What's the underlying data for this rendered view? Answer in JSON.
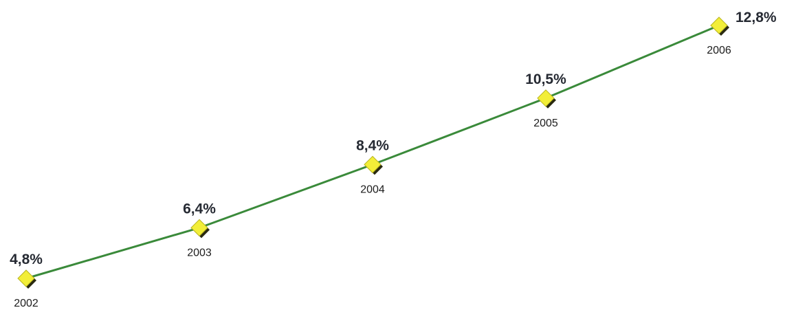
{
  "chart_data": {
    "type": "line",
    "categories": [
      "2002",
      "2003",
      "2004",
      "2005",
      "2006"
    ],
    "series": [
      {
        "values": [
          4.8,
          6.4,
          8.4,
          10.5,
          12.8
        ],
        "value_labels": [
          "4,8%",
          "6,4%",
          "8,4%",
          "10,5%",
          "12,8%"
        ]
      }
    ],
    "title": "",
    "xlabel": "",
    "ylabel": "",
    "ylim": [
      4.8,
      12.8
    ],
    "grid": false,
    "legend": "none",
    "colors": {
      "line": "#3a8a3a",
      "marker_fill": "#f2ee38",
      "marker_shadow": "#2a2a10"
    }
  }
}
